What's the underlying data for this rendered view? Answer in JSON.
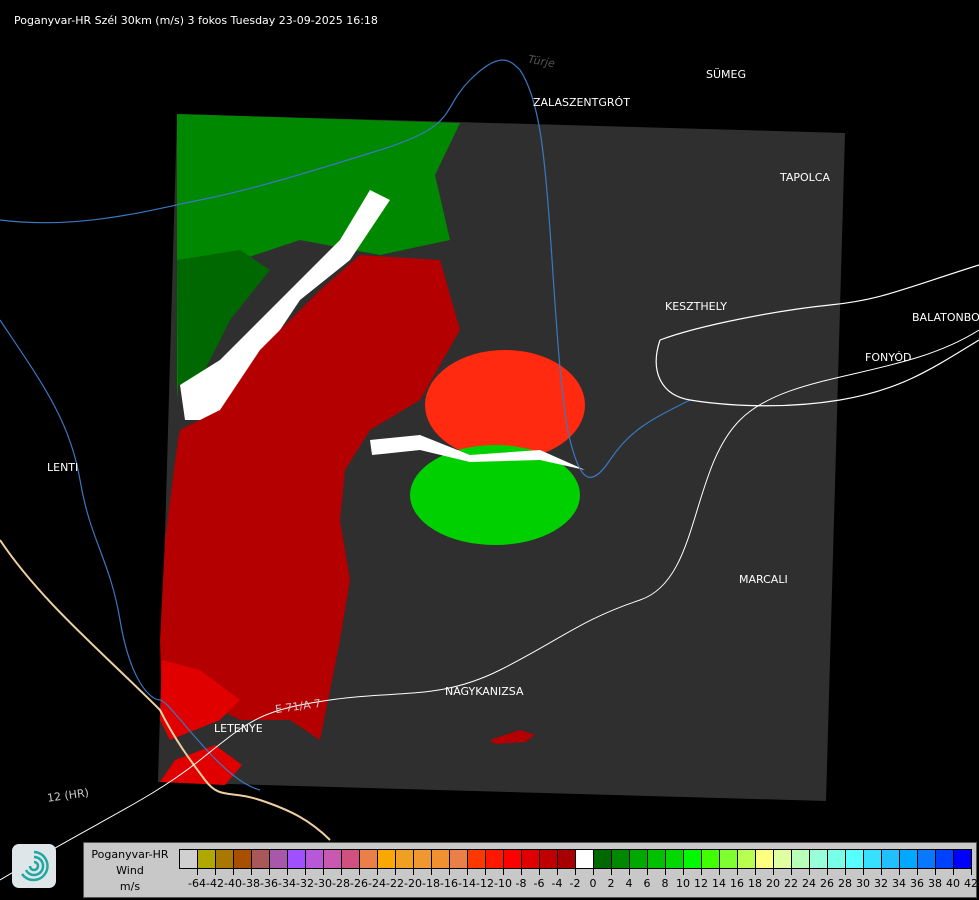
{
  "title": "Poganyvar-HR Szél 30km (m/s) 3 fokos Tuesday 23-09-2025 16:18",
  "map": {
    "cities": [
      {
        "name": "SÜMEG"
      },
      {
        "name": "ZALASZENTGRÓT"
      },
      {
        "name": "TAPOLCA"
      },
      {
        "name": "KESZTHELY"
      },
      {
        "name": "BALATONBO"
      },
      {
        "name": "FONYÓD"
      },
      {
        "name": "LENTI"
      },
      {
        "name": "MARCALI"
      },
      {
        "name": "NAGYKANIZSA"
      },
      {
        "name": "LETENYE"
      }
    ],
    "road_labels": [
      "12 (HR)",
      "E 71/A 7",
      "Türje"
    ]
  },
  "legend": {
    "title": "Poganyvar-HR",
    "subtitle": "Wind",
    "unit": "m/s",
    "labels": [
      "-64",
      "-42",
      "-40",
      "-38",
      "-36",
      "-34",
      "-32",
      "-30",
      "-28",
      "-26",
      "-24",
      "-22",
      "-20",
      "-18",
      "-16",
      "-14",
      "-12",
      "-10",
      "-8",
      "-6",
      "-4",
      "-2",
      "0",
      "2",
      "4",
      "6",
      "8",
      "10",
      "12",
      "14",
      "16",
      "18",
      "20",
      "22",
      "24",
      "26",
      "28",
      "30",
      "32",
      "34",
      "36",
      "38",
      "40",
      "42"
    ],
    "colors": [
      "#d0d0d0",
      "#b0a800",
      "#a87800",
      "#a85000",
      "#a85858",
      "#a858a8",
      "#a050ff",
      "#b858d8",
      "#c858b0",
      "#d05080",
      "#e88048",
      "#f8a800",
      "#f0a020",
      "#f09830",
      "#f09030",
      "#e88048",
      "#ff3800",
      "#ff1800",
      "#ff0000",
      "#e00000",
      "#c00000",
      "#a80000",
      "#ffffff",
      "#006800",
      "#008800",
      "#00a800",
      "#00c000",
      "#00d800",
      "#00f800",
      "#40ff00",
      "#80ff30",
      "#b8ff50",
      "#ffff80",
      "#e0ffa0",
      "#b8ffb8",
      "#98ffd8",
      "#78ffe8",
      "#58ffff",
      "#38e0ff",
      "#20c0ff",
      "#00a8ff",
      "#0878ff",
      "#0040ff",
      "#0000ff"
    ]
  },
  "logo": {
    "icon": "swirl-logo-icon"
  }
}
